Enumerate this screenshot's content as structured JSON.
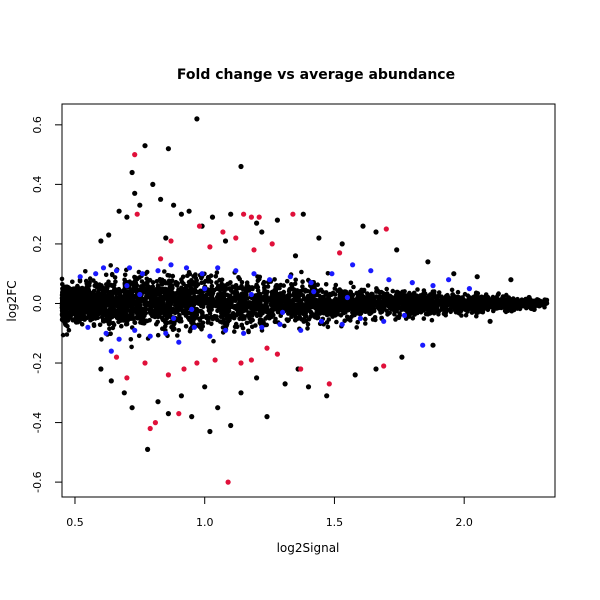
{
  "chart_data": {
    "type": "scatter",
    "title": "Fold change vs average abundance",
    "xlabel": "log2Signal",
    "ylabel": "log2FC",
    "xlim": [
      0.45,
      2.35
    ],
    "ylim": [
      -0.65,
      0.67
    ],
    "x_ticks": [
      0.5,
      1.0,
      1.5,
      2.0
    ],
    "x_tick_labels": [
      "0.5",
      "1.0",
      "1.5",
      "2.0"
    ],
    "y_ticks": [
      -0.6,
      -0.4,
      -0.2,
      0.0,
      0.2,
      0.4,
      0.6
    ],
    "y_tick_labels": [
      "-0.6",
      "-0.4",
      "-0.2",
      "0.0",
      "0.2",
      "0.4",
      "0.6"
    ],
    "grid": false,
    "legend": "none",
    "colors": {
      "black": "#000000",
      "blue": "#1a1aff",
      "red": "#e0103a"
    },
    "series": [
      {
        "color": "black",
        "points": [
          [
            0.97,
            0.62
          ],
          [
            0.77,
            0.53
          ],
          [
            0.86,
            0.52
          ],
          [
            1.14,
            0.46
          ],
          [
            0.72,
            0.44
          ],
          [
            0.8,
            0.4
          ],
          [
            0.73,
            0.37
          ],
          [
            0.75,
            0.33
          ],
          [
            0.83,
            0.35
          ],
          [
            0.88,
            0.33
          ],
          [
            0.91,
            0.3
          ],
          [
            0.94,
            0.31
          ],
          [
            0.7,
            0.29
          ],
          [
            0.67,
            0.31
          ],
          [
            1.03,
            0.29
          ],
          [
            1.1,
            0.3
          ],
          [
            1.2,
            0.27
          ],
          [
            1.28,
            0.28
          ],
          [
            1.38,
            0.3
          ],
          [
            1.44,
            0.22
          ],
          [
            1.61,
            0.26
          ],
          [
            1.66,
            0.24
          ],
          [
            1.53,
            0.2
          ],
          [
            1.74,
            0.18
          ],
          [
            1.22,
            0.24
          ],
          [
            0.99,
            0.26
          ],
          [
            0.63,
            0.23
          ],
          [
            0.6,
            0.21
          ],
          [
            1.86,
            0.14
          ],
          [
            2.05,
            0.09
          ],
          [
            2.18,
            0.08
          ],
          [
            1.96,
            0.1
          ],
          [
            1.35,
            0.16
          ],
          [
            1.08,
            0.21
          ],
          [
            0.85,
            0.22
          ],
          [
            0.78,
            -0.49
          ],
          [
            1.02,
            -0.43
          ],
          [
            1.1,
            -0.41
          ],
          [
            1.24,
            -0.38
          ],
          [
            0.95,
            -0.38
          ],
          [
            0.86,
            -0.37
          ],
          [
            0.82,
            -0.33
          ],
          [
            0.72,
            -0.35
          ],
          [
            0.69,
            -0.3
          ],
          [
            1.05,
            -0.35
          ],
          [
            0.91,
            -0.31
          ],
          [
            1.14,
            -0.3
          ],
          [
            1.31,
            -0.27
          ],
          [
            1.4,
            -0.28
          ],
          [
            1.47,
            -0.31
          ],
          [
            1.58,
            -0.24
          ],
          [
            1.66,
            -0.22
          ],
          [
            1.76,
            -0.18
          ],
          [
            1.88,
            -0.14
          ],
          [
            0.64,
            -0.26
          ],
          [
            0.6,
            -0.22
          ],
          [
            1.2,
            -0.25
          ],
          [
            1.0,
            -0.28
          ],
          [
            1.36,
            -0.22
          ],
          [
            2.1,
            -0.06
          ],
          [
            2.27,
            -0.02
          ],
          [
            2.31,
            0.01
          ],
          [
            2.25,
            0.02
          ],
          [
            2.2,
            -0.01
          ]
        ]
      },
      {
        "color": "blue",
        "points": [
          [
            0.52,
            0.09
          ],
          [
            0.58,
            0.1
          ],
          [
            0.61,
            0.12
          ],
          [
            0.66,
            0.11
          ],
          [
            0.71,
            0.12
          ],
          [
            0.76,
            0.1
          ],
          [
            0.82,
            0.11
          ],
          [
            0.87,
            0.13
          ],
          [
            0.93,
            0.12
          ],
          [
            0.99,
            0.1
          ],
          [
            1.05,
            0.12
          ],
          [
            1.12,
            0.11
          ],
          [
            1.19,
            0.1
          ],
          [
            1.25,
            0.08
          ],
          [
            1.33,
            0.09
          ],
          [
            1.41,
            0.07
          ],
          [
            1.49,
            0.1
          ],
          [
            1.57,
            0.13
          ],
          [
            1.64,
            0.11
          ],
          [
            1.71,
            0.08
          ],
          [
            1.8,
            0.07
          ],
          [
            1.88,
            0.06
          ],
          [
            1.94,
            0.08
          ],
          [
            2.02,
            0.05
          ],
          [
            0.55,
            -0.08
          ],
          [
            0.62,
            -0.1
          ],
          [
            0.67,
            -0.12
          ],
          [
            0.73,
            -0.09
          ],
          [
            0.79,
            -0.11
          ],
          [
            0.85,
            -0.1
          ],
          [
            0.9,
            -0.13
          ],
          [
            0.96,
            -0.08
          ],
          [
            1.02,
            -0.11
          ],
          [
            1.08,
            -0.09
          ],
          [
            1.15,
            -0.1
          ],
          [
            1.22,
            -0.08
          ],
          [
            1.29,
            -0.07
          ],
          [
            1.37,
            -0.09
          ],
          [
            1.45,
            -0.06
          ],
          [
            1.53,
            -0.07
          ],
          [
            1.6,
            -0.05
          ],
          [
            1.69,
            -0.06
          ],
          [
            1.77,
            -0.04
          ],
          [
            1.84,
            -0.14
          ],
          [
            0.64,
            -0.16
          ],
          [
            0.7,
            0.06
          ],
          [
            0.88,
            -0.05
          ],
          [
            1.0,
            0.05
          ],
          [
            1.18,
            0.03
          ],
          [
            1.3,
            -0.03
          ],
          [
            1.42,
            0.04
          ],
          [
            1.55,
            0.02
          ],
          [
            0.75,
            0.03
          ],
          [
            0.95,
            -0.02
          ]
        ]
      },
      {
        "color": "red",
        "points": [
          [
            0.73,
            0.5
          ],
          [
            0.74,
            0.3
          ],
          [
            1.15,
            0.3
          ],
          [
            1.18,
            0.29
          ],
          [
            1.21,
            0.29
          ],
          [
            1.34,
            0.3
          ],
          [
            1.7,
            0.25
          ],
          [
            0.98,
            0.26
          ],
          [
            1.07,
            0.24
          ],
          [
            1.12,
            0.22
          ],
          [
            0.87,
            0.21
          ],
          [
            1.26,
            0.2
          ],
          [
            1.52,
            0.17
          ],
          [
            1.02,
            0.19
          ],
          [
            1.19,
            0.18
          ],
          [
            0.83,
            0.15
          ],
          [
            1.09,
            -0.6
          ],
          [
            0.81,
            -0.4
          ],
          [
            0.79,
            -0.42
          ],
          [
            0.9,
            -0.37
          ],
          [
            1.48,
            -0.27
          ],
          [
            0.66,
            -0.18
          ],
          [
            0.7,
            -0.25
          ],
          [
            0.86,
            -0.24
          ],
          [
            0.92,
            -0.22
          ],
          [
            0.97,
            -0.2
          ],
          [
            1.04,
            -0.19
          ],
          [
            1.14,
            -0.2
          ],
          [
            1.18,
            -0.19
          ],
          [
            1.28,
            -0.17
          ],
          [
            1.37,
            -0.22
          ],
          [
            1.69,
            -0.21
          ],
          [
            0.77,
            -0.2
          ],
          [
            1.24,
            -0.15
          ]
        ]
      }
    ],
    "dense_band": {
      "color": "black",
      "center_spread": [
        [
          0.45,
          0.055
        ],
        [
          0.55,
          0.065
        ],
        [
          0.65,
          0.075
        ],
        [
          0.75,
          0.08
        ],
        [
          0.85,
          0.082
        ],
        [
          0.95,
          0.08
        ],
        [
          1.05,
          0.076
        ],
        [
          1.15,
          0.07
        ],
        [
          1.25,
          0.062
        ],
        [
          1.35,
          0.055
        ],
        [
          1.45,
          0.05
        ],
        [
          1.55,
          0.045
        ],
        [
          1.65,
          0.042
        ],
        [
          1.75,
          0.04
        ],
        [
          1.85,
          0.035
        ],
        [
          1.95,
          0.03
        ],
        [
          2.05,
          0.025
        ],
        [
          2.15,
          0.02
        ],
        [
          2.25,
          0.015
        ],
        [
          2.32,
          0.01
        ]
      ],
      "count": 3800,
      "x_range": [
        0.45,
        2.32
      ]
    }
  }
}
